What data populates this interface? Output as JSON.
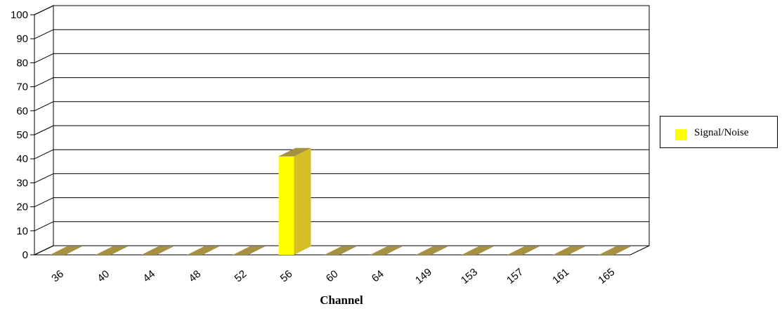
{
  "chart_data": {
    "type": "bar",
    "xlabel": "Channel",
    "ylabel": "",
    "ylim": [
      0,
      100
    ],
    "yticks": [
      0,
      10,
      20,
      30,
      40,
      50,
      60,
      70,
      80,
      90,
      100
    ],
    "categories": [
      "36",
      "40",
      "44",
      "48",
      "52",
      "56",
      "60",
      "64",
      "149",
      "153",
      "157",
      "161",
      "165"
    ],
    "series": [
      {
        "name": "Signal/Noise",
        "values": [
          0,
          0,
          0,
          0,
          0,
          41,
          0,
          0,
          0,
          0,
          0,
          0,
          0
        ],
        "color": "#ffff00"
      }
    ],
    "grid": true,
    "legend_position": "right"
  }
}
